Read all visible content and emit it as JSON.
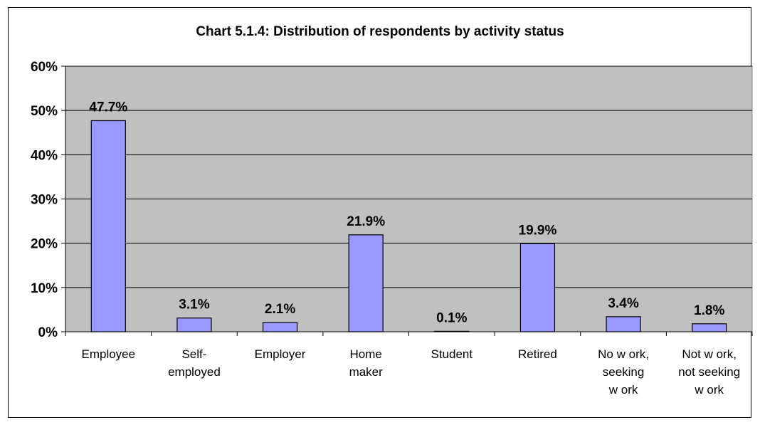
{
  "chart_data": {
    "type": "bar",
    "title": "Chart 5.1.4: Distribution of respondents by activity status",
    "xlabel": "",
    "ylabel": "",
    "categories": [
      "Employee",
      "Self-employed",
      "Employer",
      "Home maker",
      "Student",
      "Retired",
      "No w ork, seeking w ork",
      "Not w ork, not seeking w ork"
    ],
    "category_lines": [
      [
        "Employee"
      ],
      [
        "Self-",
        "employed"
      ],
      [
        "Employer"
      ],
      [
        "Home",
        "maker"
      ],
      [
        "Student"
      ],
      [
        "Retired"
      ],
      [
        "No w ork,",
        "seeking",
        "w ork"
      ],
      [
        "Not w ork,",
        "not seeking",
        "w ork"
      ]
    ],
    "values": [
      47.7,
      3.1,
      2.1,
      21.9,
      0.1,
      19.9,
      3.4,
      1.8
    ],
    "data_labels": [
      "47.7%",
      "3.1%",
      "2.1%",
      "21.9%",
      "0.1%",
      "19.9%",
      "3.4%",
      "1.8%"
    ],
    "ylim": [
      0,
      60
    ],
    "yticks": [
      0,
      10,
      20,
      30,
      40,
      50,
      60
    ],
    "ytick_labels": [
      "0%",
      "10%",
      "20%",
      "30%",
      "40%",
      "50%",
      "60%"
    ],
    "grid": true,
    "legend": "none",
    "colors": {
      "bar_fill": "#9999FF",
      "bar_stroke": "#000000",
      "plot_background": "#C0C0C0",
      "gridline": "#000000"
    }
  }
}
